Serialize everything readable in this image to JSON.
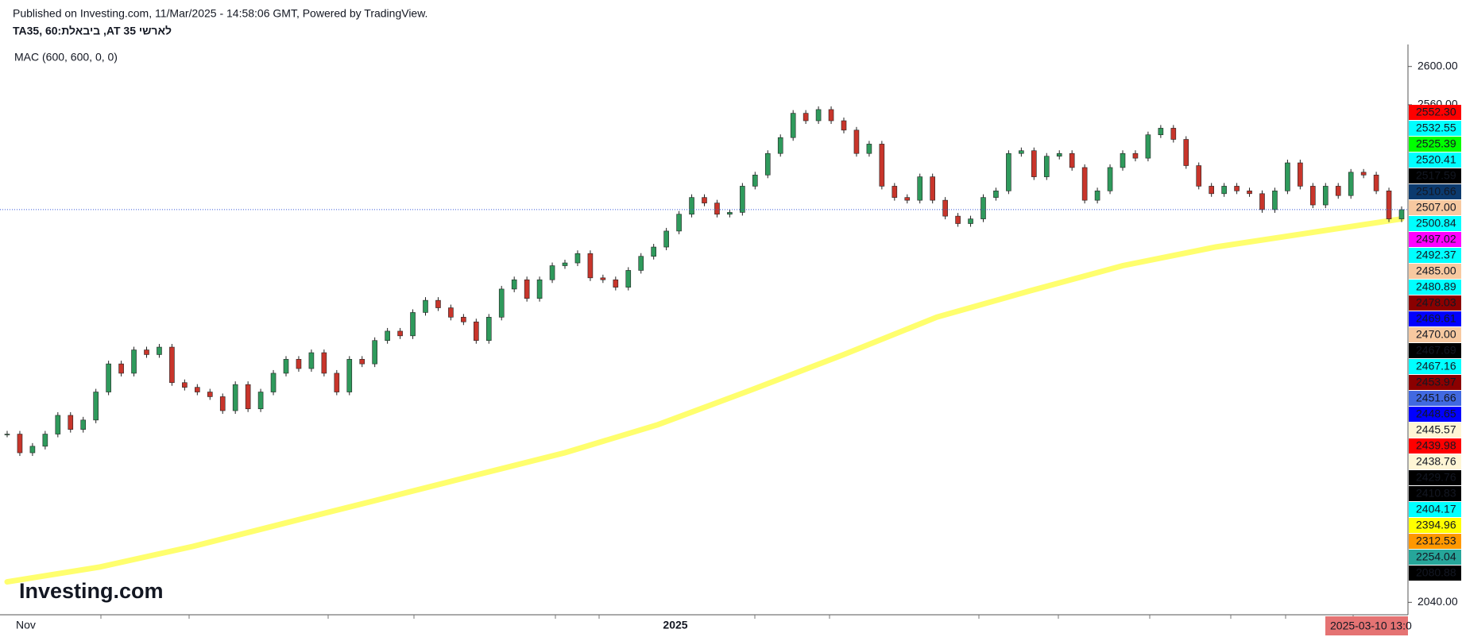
{
  "header": {
    "published": "Published on Investing.com, 11/Mar/2025 - 14:58:06 GMT, Powered by TradingView.",
    "symbol": "TA35, 60:ביבאלת ,AT 35 לארשי",
    "indicator": "MAC (600, 600, 0, 0)",
    "logo": "Investing.com"
  },
  "chart_data": {
    "type": "candlestick",
    "series": [
      {
        "name": "TA35",
        "up_color": "#2f9a5c",
        "down_color": "#c8352b",
        "values": [
          2215.8,
          2196.3,
          2203.1,
          2215.8,
          2235.4,
          2220.7,
          2230.5,
          2259.8,
          2289.2,
          2279.4,
          2303.8,
          2298.9,
          2306.7,
          2269.6,
          2264.7,
          2259.8,
          2254.9,
          2240.3,
          2267.6,
          2242.2,
          2259.8,
          2279.4,
          2294.0,
          2284.3,
          2300.9,
          2279.4,
          2259.8,
          2294.0,
          2289.2,
          2313.6,
          2323.4,
          2318.5,
          2342.9,
          2355.6,
          2347.8,
          2338.0,
          2333.1,
          2313.6,
          2338.0,
          2367.4,
          2377.1,
          2357.6,
          2377.1,
          2391.8,
          2394.7,
          2404.5,
          2379.1,
          2377.1,
          2369.3,
          2386.9,
          2401.6,
          2411.3,
          2428.0,
          2445.6,
          2463.1,
          2457.3,
          2445.6,
          2447.5,
          2474.9,
          2486.6,
          2509.1,
          2525.7,
          2551.1,
          2543.3,
          2555.0,
          2543.3,
          2533.5,
          2509.1,
          2518.9,
          2474.9,
          2463.1,
          2460.2,
          2484.7,
          2460.2,
          2443.6,
          2435.8,
          2440.7,
          2463.1,
          2470.0,
          2509.1,
          2512.0,
          2484.7,
          2506.2,
          2509.1,
          2494.4,
          2460.2,
          2470.0,
          2494.4,
          2509.1,
          2504.2,
          2528.6,
          2535.5,
          2523.8,
          2496.4,
          2474.9,
          2467.1,
          2474.9,
          2470.0,
          2467.1,
          2450.4,
          2470.0,
          2499.3,
          2474.9,
          2455.3,
          2474.9,
          2465.1,
          2489.5,
          2486.6,
          2470.0,
          2440.7,
          2450.4
        ]
      },
      {
        "name": "MAC",
        "color": "#ffff55",
        "values": [
          2061.4,
          2077.0,
          2098.5,
          2123.0,
          2147.4,
          2171.9,
          2196.3,
          2225.6,
          2261.8,
          2298.9,
          2338.0,
          2365.4,
          2391.8,
          2411.3,
          2426.0,
          2440.7
        ]
      }
    ],
    "ylim": [
      2027,
      2623
    ],
    "yticks": [
      {
        "value": 2600,
        "label": "2600.00"
      },
      {
        "value": 2560,
        "label": "2560.00"
      },
      {
        "value": 2040,
        "label": "2040.00"
      }
    ],
    "xlabels": [
      "Nov",
      "2025"
    ],
    "crosshair_label": "2025-03-10 13:0",
    "price_line_color": "#3b5bdb",
    "price_labels": [
      {
        "label": "2552.30",
        "color": "#ff0000",
        "text_color": "#ffffff"
      },
      {
        "label": "2532.55",
        "color": "#00ffff",
        "text_color": "#000000"
      },
      {
        "label": "2525.39",
        "color": "#00ff00",
        "text_color": "#000000"
      },
      {
        "label": "2520.41",
        "color": "#00ffff",
        "text_color": "#000000"
      },
      {
        "label": "2517.59",
        "color": "#000000",
        "text_color": "#ffffff"
      },
      {
        "label": "2510.66",
        "color": "#0b3a6e",
        "text_color": "#ffffff"
      },
      {
        "label": "2507.00",
        "color": "#f7c9a0",
        "text_color": "#000000"
      },
      {
        "label": "2500.84",
        "color": "#00ffff",
        "text_color": "#000000"
      },
      {
        "label": "2497.02",
        "color": "#ff00ff",
        "text_color": "#ffffff"
      },
      {
        "label": "2492.37",
        "color": "#00ffff",
        "text_color": "#000000"
      },
      {
        "label": "2485.00",
        "color": "#f7c9a0",
        "text_color": "#000000"
      },
      {
        "label": "2480.89",
        "color": "#00ffff",
        "text_color": "#000000"
      },
      {
        "label": "2478.03",
        "color": "#8b0000",
        "text_color": "#ffffff"
      },
      {
        "label": "2469.61",
        "color": "#0000ff",
        "text_color": "#ffffff"
      },
      {
        "label": "2470.00",
        "color": "#f7c9a0",
        "text_color": "#000000"
      },
      {
        "label": "2467.69",
        "color": "#000000",
        "text_color": "#ffffff"
      },
      {
        "label": "2467.16",
        "color": "#00ffff",
        "text_color": "#000000"
      },
      {
        "label": "2453.97",
        "color": "#8b0000",
        "text_color": "#ffffff"
      },
      {
        "label": "2451.66",
        "color": "#4169e1",
        "text_color": "#ffffff"
      },
      {
        "label": "2448.65",
        "color": "#0000ff",
        "text_color": "#ffffff"
      },
      {
        "label": "2445.57",
        "color": "#fff6d5",
        "text_color": "#000000"
      },
      {
        "label": "2439.98",
        "color": "#ff0000",
        "text_color": "#ffffff"
      },
      {
        "label": "2438.76",
        "color": "#fff6d5",
        "text_color": "#000000"
      },
      {
        "label": "2429.76",
        "color": "#000000",
        "text_color": "#ffffff"
      },
      {
        "label": "2410.83",
        "color": "#000000",
        "text_color": "#ffffff"
      },
      {
        "label": "2404.17",
        "color": "#00ffff",
        "text_color": "#000000"
      },
      {
        "label": "2394.96",
        "color": "#ffff00",
        "text_color": "#000000"
      },
      {
        "label": "2312.53",
        "color": "#ff9800",
        "text_color": "#000000"
      },
      {
        "label": "2254.04",
        "color": "#26a69a",
        "text_color": "#ffffff"
      },
      {
        "label": "2080.88",
        "color": "#000000",
        "text_color": "#ffffff"
      }
    ]
  }
}
